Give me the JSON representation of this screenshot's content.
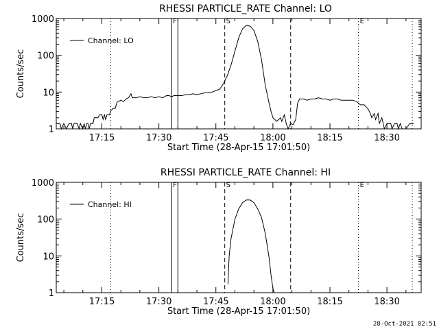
{
  "footer_timestamp": "28-Oct-2021 02:51",
  "chart_data": [
    {
      "type": "line",
      "title": "RHESSI PARTICLE_RATE Channel: LO",
      "xlabel": "Start Time (28-Apr-15 17:01:50)",
      "ylabel": "Counts/sec",
      "xlim": [
        "17:03",
        "18:39"
      ],
      "x_tick_labels": [
        "17:15",
        "17:30",
        "17:45",
        "18:00",
        "18:15",
        "18:30"
      ],
      "y_scale": "log",
      "ylim": [
        1,
        1000
      ],
      "y_tick_labels": [
        "1",
        "10",
        "100",
        "1000"
      ],
      "legend": {
        "label": "Channel: LO",
        "placement": "top-left"
      },
      "markers": [
        {
          "label": "F",
          "x": "17:33:20",
          "style": "solid"
        },
        {
          "label": "F",
          "x": "17:35:00",
          "style": "solid",
          "hide_label": true
        },
        {
          "label": "S",
          "x": "17:47:20",
          "style": "dashed"
        },
        {
          "label": "",
          "x": "18:04:40",
          "style": "dashed"
        },
        {
          "label": "E",
          "x": "18:22:30",
          "style": "dotted"
        },
        {
          "label": "",
          "x": "17:17:20",
          "style": "dotted"
        },
        {
          "label": "",
          "x": "18:36:40",
          "style": "dotted"
        }
      ],
      "series": [
        {
          "name": "Channel: LO",
          "points": [
            [
              "17:03:00",
              1.4
            ],
            [
              "17:04:00",
              1.4
            ],
            [
              "17:04:20",
              1
            ],
            [
              "17:05:00",
              1.4
            ],
            [
              "17:05:40",
              1
            ],
            [
              "17:06:20",
              1.4
            ],
            [
              "17:07:00",
              1.4
            ],
            [
              "17:07:20",
              1
            ],
            [
              "17:07:40",
              1.4
            ],
            [
              "17:08:30",
              1.4
            ],
            [
              "17:09:00",
              1
            ],
            [
              "17:09:20",
              1.4
            ],
            [
              "17:10:00",
              1
            ],
            [
              "17:10:20",
              1.4
            ],
            [
              "17:10:40",
              1
            ],
            [
              "17:11:00",
              1.4
            ],
            [
              "17:11:20",
              1.4
            ],
            [
              "17:11:40",
              1
            ],
            [
              "17:12:00",
              1.4
            ],
            [
              "17:12:40",
              1.4
            ],
            [
              "17:13:00",
              2
            ],
            [
              "17:14:00",
              2
            ],
            [
              "17:14:20",
              2.4
            ],
            [
              "17:15:00",
              2.4
            ],
            [
              "17:15:20",
              1.8
            ],
            [
              "17:15:40",
              2.4
            ],
            [
              "17:16:00",
              1.8
            ],
            [
              "17:16:20",
              2.4
            ],
            [
              "17:17:00",
              2.4
            ],
            [
              "17:17:20",
              3.1
            ],
            [
              "17:18:00",
              3.6
            ],
            [
              "17:18:30",
              3.6
            ],
            [
              "17:19:00",
              5.3
            ],
            [
              "17:20:00",
              6
            ],
            [
              "17:20:40",
              5.5
            ],
            [
              "17:21:20",
              6.5
            ],
            [
              "17:22:00",
              7
            ],
            [
              "17:22:40",
              9
            ],
            [
              "17:23:00",
              7
            ],
            [
              "17:24:00",
              7
            ],
            [
              "17:25:00",
              7.5
            ],
            [
              "17:26:00",
              7
            ],
            [
              "17:27:00",
              7
            ],
            [
              "17:28:00",
              7.5
            ],
            [
              "17:29:00",
              7
            ],
            [
              "17:30:00",
              7.5
            ],
            [
              "17:31:00",
              7
            ],
            [
              "17:32:00",
              8
            ],
            [
              "17:32:40",
              8
            ],
            [
              "17:33:20",
              7.5
            ],
            [
              "17:34:00",
              8
            ],
            [
              "17:35:00",
              8
            ],
            [
              "17:36:00",
              8
            ],
            [
              "17:37:00",
              8.5
            ],
            [
              "17:38:00",
              8.5
            ],
            [
              "17:39:00",
              9
            ],
            [
              "17:40:00",
              8.5
            ],
            [
              "17:41:00",
              9
            ],
            [
              "17:42:00",
              9.5
            ],
            [
              "17:43:00",
              9.5
            ],
            [
              "17:44:00",
              10
            ],
            [
              "17:45:00",
              11
            ],
            [
              "17:46:00",
              12
            ],
            [
              "17:47:00",
              17
            ],
            [
              "17:48:00",
              28
            ],
            [
              "17:49:00",
              55
            ],
            [
              "17:50:00",
              130
            ],
            [
              "17:51:00",
              300
            ],
            [
              "17:52:00",
              520
            ],
            [
              "17:53:00",
              650
            ],
            [
              "17:54:00",
              620
            ],
            [
              "17:55:00",
              470
            ],
            [
              "17:56:00",
              240
            ],
            [
              "17:57:00",
              75
            ],
            [
              "17:58:00",
              15
            ],
            [
              "17:59:00",
              5
            ],
            [
              "17:59:30",
              3
            ],
            [
              "18:00:00",
              2
            ],
            [
              "18:00:30",
              1.8
            ],
            [
              "18:01:00",
              1.6
            ],
            [
              "18:02:00",
              2
            ],
            [
              "18:02:20",
              1.6
            ],
            [
              "18:03:00",
              2.4
            ],
            [
              "18:03:30",
              1.4
            ],
            [
              "18:04:00",
              1
            ],
            [
              "18:04:40",
              1.4
            ],
            [
              "18:05:20",
              1.3
            ],
            [
              "18:06:00",
              1.8
            ],
            [
              "18:06:30",
              5
            ],
            [
              "18:07:00",
              6.5
            ],
            [
              "18:08:00",
              6.5
            ],
            [
              "18:09:00",
              6
            ],
            [
              "18:10:00",
              6.5
            ],
            [
              "18:11:00",
              6.5
            ],
            [
              "18:12:00",
              7
            ],
            [
              "18:13:00",
              6.5
            ],
            [
              "18:14:00",
              6.5
            ],
            [
              "18:15:00",
              6
            ],
            [
              "18:16:00",
              6.5
            ],
            [
              "18:17:00",
              6.5
            ],
            [
              "18:18:00",
              6
            ],
            [
              "18:19:00",
              6
            ],
            [
              "18:20:00",
              6
            ],
            [
              "18:21:00",
              6
            ],
            [
              "18:22:00",
              5.5
            ],
            [
              "18:23:00",
              4.5
            ],
            [
              "18:24:00",
              4.5
            ],
            [
              "18:25:00",
              3.5
            ],
            [
              "18:25:40",
              2.6
            ],
            [
              "18:26:00",
              2
            ],
            [
              "18:26:40",
              2.6
            ],
            [
              "18:27:00",
              1.8
            ],
            [
              "18:27:40",
              2.6
            ],
            [
              "18:28:00",
              1.4
            ],
            [
              "18:28:40",
              2
            ],
            [
              "18:29:00",
              1.4
            ],
            [
              "18:29:20",
              1
            ],
            [
              "18:30:00",
              1.4
            ],
            [
              "18:31:00",
              1.4
            ],
            [
              "18:31:20",
              1
            ],
            [
              "18:32:00",
              1.4
            ],
            [
              "18:32:40",
              1.4
            ],
            [
              "18:33:00",
              1
            ],
            [
              "18:33:30",
              1.4
            ],
            [
              "18:34:00",
              1
            ],
            [
              "18:35:00",
              1
            ],
            [
              "18:36:00",
              1.4
            ],
            [
              "18:37:00",
              1.4
            ]
          ]
        }
      ]
    },
    {
      "type": "line",
      "title": "RHESSI PARTICLE_RATE Channel: HI",
      "xlabel": "Start Time (28-Apr-15 17:01:50)",
      "ylabel": "Counts/sec",
      "xlim": [
        "17:03",
        "18:39"
      ],
      "x_tick_labels": [
        "17:15",
        "17:30",
        "17:45",
        "18:00",
        "18:15",
        "18:30"
      ],
      "y_scale": "log",
      "ylim": [
        1,
        1000
      ],
      "y_tick_labels": [
        "1",
        "10",
        "100",
        "1000"
      ],
      "legend": {
        "label": "Channel: HI",
        "placement": "top-left"
      },
      "markers": [
        {
          "label": "F",
          "x": "17:33:20",
          "style": "solid"
        },
        {
          "label": "F",
          "x": "17:35:00",
          "style": "solid",
          "hide_label": true
        },
        {
          "label": "S",
          "x": "17:47:20",
          "style": "dashed"
        },
        {
          "label": "",
          "x": "18:04:40",
          "style": "dashed"
        },
        {
          "label": "E",
          "x": "18:22:30",
          "style": "dotted"
        },
        {
          "label": "",
          "x": "17:17:20",
          "style": "dotted"
        },
        {
          "label": "",
          "x": "18:36:40",
          "style": "dotted"
        }
      ],
      "series": [
        {
          "name": "Channel: HI",
          "points": [
            [
              "17:48:10",
              1.7
            ],
            [
              "17:48:30",
              10
            ],
            [
              "17:49:00",
              30
            ],
            [
              "17:50:00",
              100
            ],
            [
              "17:51:00",
              190
            ],
            [
              "17:52:00",
              280
            ],
            [
              "17:53:00",
              330
            ],
            [
              "17:54:00",
              330
            ],
            [
              "17:55:00",
              280
            ],
            [
              "17:56:00",
              190
            ],
            [
              "17:57:00",
              110
            ],
            [
              "17:58:00",
              40
            ],
            [
              "17:59:00",
              9
            ],
            [
              "17:59:30",
              3
            ],
            [
              "18:00:00",
              1.3
            ],
            [
              "18:00:20",
              1
            ]
          ]
        }
      ]
    }
  ]
}
